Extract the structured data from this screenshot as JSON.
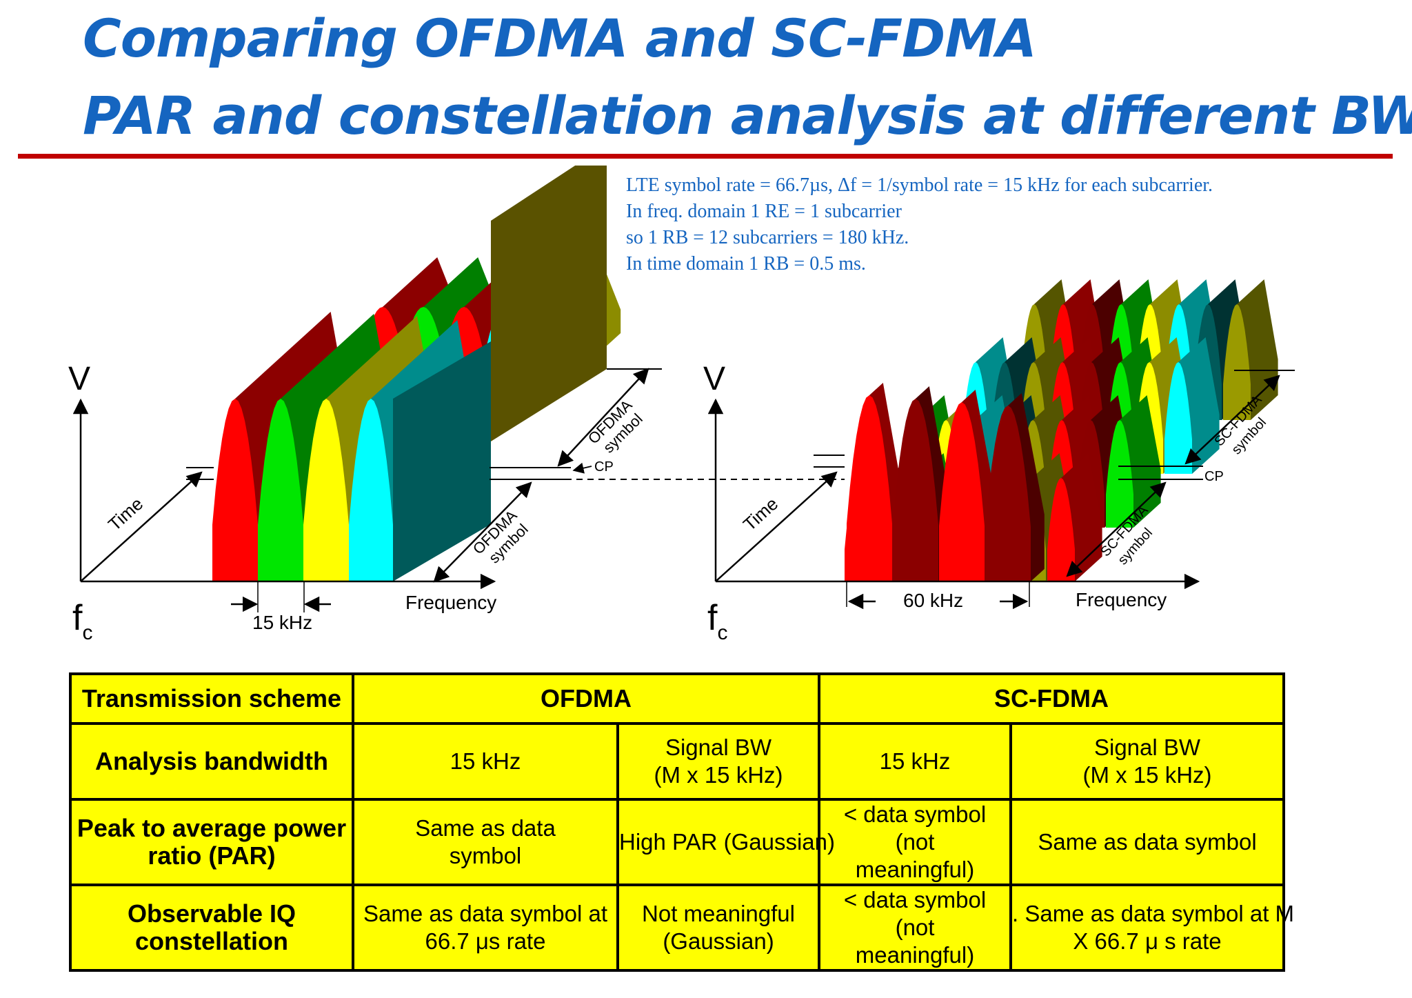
{
  "title_line1": "Comparing OFDMA and SC-FDMA",
  "title_line2": "PAR and constellation analysis at different BW",
  "note_lines": [
    "LTE symbol rate  = 66.7µs, Δf = 1/symbol rate = 15 kHz for each subcarrier.",
    "In freq. domain 1 RE = 1 subcarrier",
    "so 1 RB = 12 subcarriers = 180 kHz.",
    "In time domain 1 RB = 0.5 ms."
  ],
  "diagram_left": {
    "v_label": "V",
    "time_label": "Time",
    "frequency_label": "Frequency",
    "fc_main": "f",
    "fc_sub": "c",
    "spacing_label": "15 kHz",
    "symbol_label_line1": "OFDMA",
    "symbol_label_line2": "symbol",
    "cp_label": "CP"
  },
  "diagram_right": {
    "v_label": "V",
    "time_label": "Time",
    "frequency_label": "Frequency",
    "fc_main": "f",
    "fc_sub": "c",
    "spacing_label": "60 kHz",
    "symbol_label_line1": "SC-FDMA",
    "symbol_label_line2": "symbol",
    "cp_label": "CP"
  },
  "colors": {
    "title": "#1565c0",
    "rule": "#c00000",
    "red": "#ff0000",
    "dark_red": "#8b0000",
    "green": "#00e600",
    "yellow": "#ffff00",
    "cyan": "#00ffff",
    "teal": "#005a5a",
    "olive": "#5a5200",
    "table_bg": "#ffff00"
  },
  "table": {
    "header_label": "Transmission scheme",
    "ofdma": "OFDMA",
    "scfdma": "SC-FDMA",
    "bandwidth_label": "Analysis bandwidth",
    "bw_ofdma_15": "15 kHz",
    "bw_ofdma_sig_1": "Signal BW",
    "bw_ofdma_sig_2": "(M x 15 kHz)",
    "bw_scfdma_15": "15 kHz",
    "bw_scfdma_sig_1": "Signal BW",
    "bw_scfdma_sig_2": "(M x 15 kHz)",
    "par_label_1": "Peak to average power",
    "par_label_2": "ratio (PAR)",
    "par_ofdma_15_1": "Same as data",
    "par_ofdma_15_2": "symbol",
    "par_ofdma_sig": "High PAR (Gaussian)",
    "par_scfdma_15_1": "< data symbol (not",
    "par_scfdma_15_2": "meaningful)",
    "par_scfdma_sig": "Same as data symbol",
    "iq_label_1": "Observable IQ",
    "iq_label_2": "constellation",
    "iq_ofdma_15_1": "Same as data symbol at",
    "iq_ofdma_15_2": "66.7 μs rate",
    "iq_ofdma_sig_1": "Not meaningful",
    "iq_ofdma_sig_2": "(Gaussian)",
    "iq_scfdma_15_1": "< data symbol (not",
    "iq_scfdma_15_2": "meaningful)",
    "iq_scfdma_sig_1": ". Same as data symbol at M",
    "iq_scfdma_sig_2": "X 66.7 μ s rate"
  }
}
